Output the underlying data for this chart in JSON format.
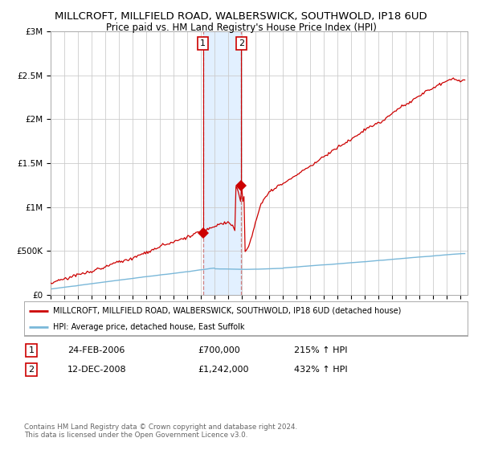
{
  "title": "MILLCROFT, MILLFIELD ROAD, WALBERSWICK, SOUTHWOLD, IP18 6UD",
  "subtitle": "Price paid vs. HM Land Registry's House Price Index (HPI)",
  "title_fontsize": 9.5,
  "subtitle_fontsize": 8.5,
  "ylim": [
    0,
    3000000
  ],
  "yticks": [
    0,
    500000,
    1000000,
    1500000,
    2000000,
    2500000,
    3000000
  ],
  "ytick_labels": [
    "£0",
    "£500K",
    "£1M",
    "£1.5M",
    "£2M",
    "£2.5M",
    "£3M"
  ],
  "background_color": "#ffffff",
  "plot_bg_color": "#ffffff",
  "grid_color": "#cccccc",
  "hpi_color": "#7ab8d9",
  "price_color": "#cc0000",
  "shade_color": "#ddeeff",
  "dashed_color": "#d08080",
  "marker1_date": 2006.14,
  "marker1_price": 700000,
  "marker2_date": 2008.95,
  "marker2_price": 1242000,
  "legend_price_label": "MILLCROFT, MILLFIELD ROAD, WALBERSWICK, SOUTHWOLD, IP18 6UD (detached house)",
  "legend_hpi_label": "HPI: Average price, detached house, East Suffolk",
  "table_row1": [
    "1",
    "24-FEB-2006",
    "£700,000",
    "215% ↑ HPI"
  ],
  "table_row2": [
    "2",
    "12-DEC-2008",
    "£1,242,000",
    "432% ↑ HPI"
  ],
  "footer": "Contains HM Land Registry data © Crown copyright and database right 2024.\nThis data is licensed under the Open Government Licence v3.0.",
  "xmin": 1995.0,
  "xmax": 2025.5
}
